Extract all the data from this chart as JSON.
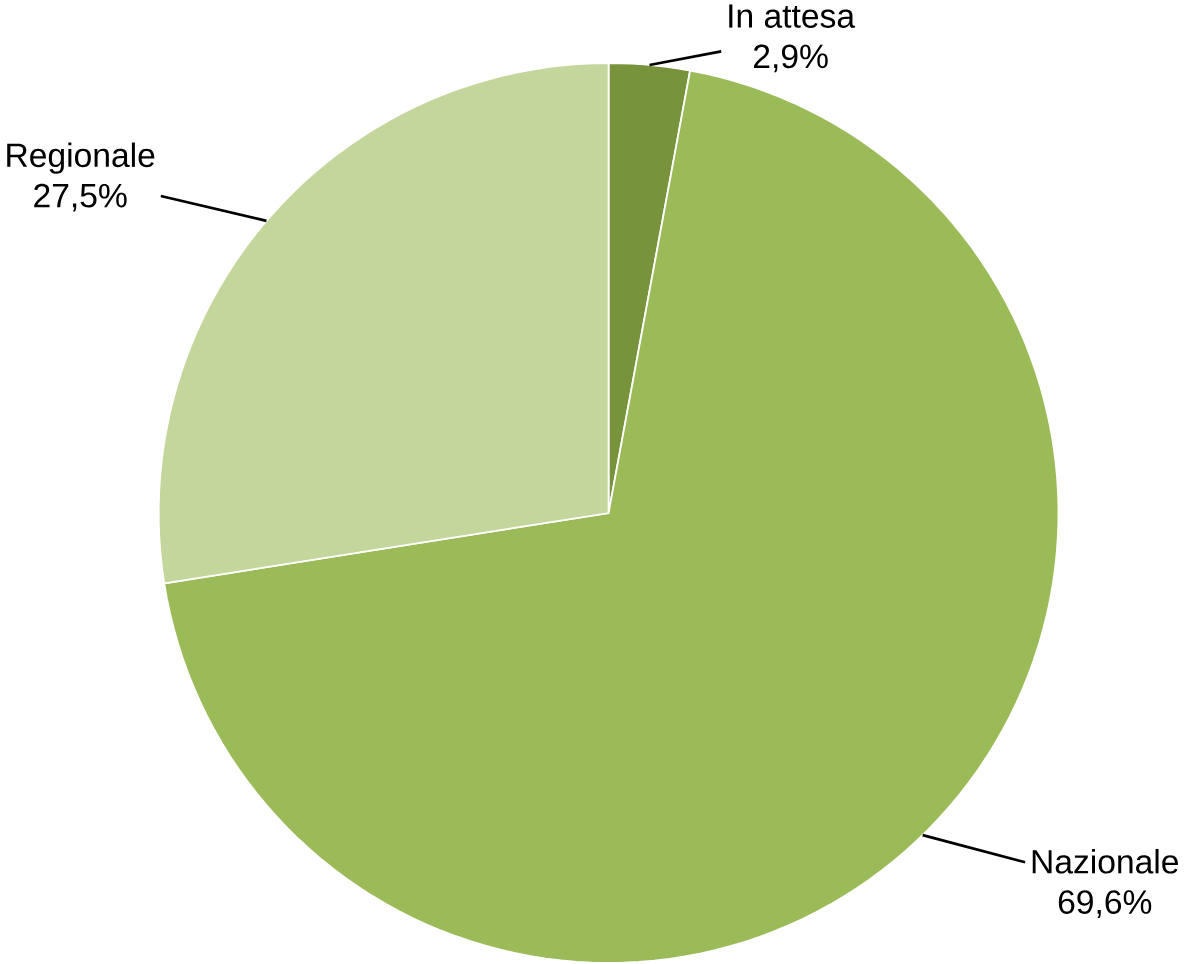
{
  "chart_data": {
    "type": "pie",
    "categories": [
      "In attesa",
      "Nazionale",
      "Regionale"
    ],
    "values": [
      2.9,
      69.6,
      27.5
    ],
    "value_labels": [
      "2,9%",
      "69,6%",
      "27,5%"
    ],
    "colors": [
      "#77933c",
      "#9bbb59",
      "#c3d69b"
    ]
  }
}
